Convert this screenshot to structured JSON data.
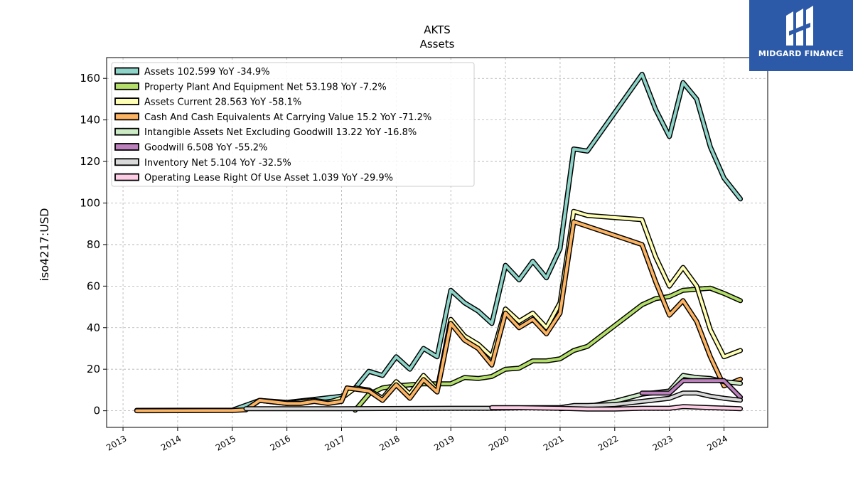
{
  "brand": {
    "name": "MIDGARD FINANCE",
    "bg_color": "#2c5aa8"
  },
  "chart_data": {
    "type": "line",
    "title": "AKTS",
    "subtitle": "Assets",
    "ylabel": "iso4217:USD",
    "xlabel": "",
    "xlim": [
      2012.7,
      2024.8
    ],
    "ylim": [
      -8,
      170
    ],
    "yticks": [
      0,
      20,
      40,
      60,
      80,
      100,
      120,
      140,
      160
    ],
    "xticks": [
      "2013",
      "2014",
      "2015",
      "2016",
      "2017",
      "2018",
      "2019",
      "2020",
      "2021",
      "2022",
      "2023",
      "2024"
    ],
    "grid": true,
    "legend_position": "top-left",
    "series": [
      {
        "name": "Assets",
        "legend": "Assets  102.599 YoY -34.9%",
        "color": "#8dd3c7",
        "points": [
          [
            2013.25,
            0.2
          ],
          [
            2015.0,
            0.3
          ],
          [
            2015.5,
            5.0
          ],
          [
            2016.0,
            4.0
          ],
          [
            2016.5,
            5.5
          ],
          [
            2017.0,
            7.0
          ],
          [
            2017.25,
            11.0
          ],
          [
            2017.5,
            19.0
          ],
          [
            2017.75,
            17.0
          ],
          [
            2018.0,
            26.0
          ],
          [
            2018.25,
            20.0
          ],
          [
            2018.5,
            30.0
          ],
          [
            2018.75,
            26.0
          ],
          [
            2019.0,
            58.0
          ],
          [
            2019.25,
            52.0
          ],
          [
            2019.5,
            48.0
          ],
          [
            2019.75,
            42.0
          ],
          [
            2020.0,
            70.0
          ],
          [
            2020.25,
            63.0
          ],
          [
            2020.5,
            72.0
          ],
          [
            2020.75,
            64.0
          ],
          [
            2021.0,
            78.0
          ],
          [
            2021.25,
            126.0
          ],
          [
            2021.5,
            125.0
          ],
          [
            2022.5,
            162.0
          ],
          [
            2022.75,
            145.0
          ],
          [
            2023.0,
            132.0
          ],
          [
            2023.25,
            158.0
          ],
          [
            2023.5,
            150.0
          ],
          [
            2023.75,
            127.0
          ],
          [
            2024.0,
            112.0
          ],
          [
            2024.3,
            102.0
          ]
        ]
      },
      {
        "name": "Property Plant And Equipment Net",
        "legend": "Property Plant And Equipment Net  53.198 YoY -7.2%",
        "color": "#b3de69",
        "points": [
          [
            2017.25,
            0.3
          ],
          [
            2017.5,
            8.0
          ],
          [
            2017.75,
            11.0
          ],
          [
            2018.0,
            12.0
          ],
          [
            2018.5,
            13.0
          ],
          [
            2019.0,
            13.0
          ],
          [
            2019.25,
            16.0
          ],
          [
            2019.5,
            15.5
          ],
          [
            2019.75,
            16.5
          ],
          [
            2020.0,
            20.0
          ],
          [
            2020.25,
            20.5
          ],
          [
            2020.5,
            24.0
          ],
          [
            2020.75,
            24.0
          ],
          [
            2021.0,
            25.0
          ],
          [
            2021.25,
            29.0
          ],
          [
            2021.5,
            31.0
          ],
          [
            2022.0,
            41.0
          ],
          [
            2022.5,
            51.0
          ],
          [
            2022.75,
            54.0
          ],
          [
            2023.0,
            55.0
          ],
          [
            2023.25,
            58.0
          ],
          [
            2023.5,
            58.5
          ],
          [
            2023.75,
            59.0
          ],
          [
            2024.0,
            56.5
          ],
          [
            2024.3,
            53.0
          ]
        ]
      },
      {
        "name": "Assets Current",
        "legend": "Assets Current  28.563 YoY -58.1%",
        "color": "#ffffb3",
        "points": [
          [
            2015.25,
            0.5
          ],
          [
            2015.5,
            5.0
          ],
          [
            2016.0,
            3.5
          ],
          [
            2016.5,
            5.0
          ],
          [
            2016.75,
            4.0
          ],
          [
            2017.0,
            6.0
          ],
          [
            2017.25,
            11.0
          ],
          [
            2017.5,
            10.0
          ],
          [
            2017.75,
            6.0
          ],
          [
            2018.0,
            14.0
          ],
          [
            2018.25,
            8.0
          ],
          [
            2018.5,
            17.0
          ],
          [
            2018.75,
            10.0
          ],
          [
            2019.0,
            44.0
          ],
          [
            2019.25,
            36.0
          ],
          [
            2019.5,
            32.0
          ],
          [
            2019.75,
            26.0
          ],
          [
            2020.0,
            49.0
          ],
          [
            2020.25,
            43.0
          ],
          [
            2020.5,
            47.0
          ],
          [
            2020.75,
            40.0
          ],
          [
            2021.0,
            52.0
          ],
          [
            2021.25,
            96.0
          ],
          [
            2021.5,
            94.0
          ],
          [
            2022.5,
            92.0
          ],
          [
            2022.75,
            74.0
          ],
          [
            2023.0,
            60.0
          ],
          [
            2023.25,
            69.0
          ],
          [
            2023.5,
            60.0
          ],
          [
            2023.75,
            39.0
          ],
          [
            2024.0,
            26.0
          ],
          [
            2024.3,
            29.0
          ]
        ]
      },
      {
        "name": "Cash And Cash Equivalents At Carrying Value",
        "legend": "Cash And Cash Equivalents At Carrying Value  15.2 YoY -71.2%",
        "color": "#fdb462",
        "points": [
          [
            2013.25,
            0.0
          ],
          [
            2015.0,
            0.1
          ],
          [
            2015.25,
            0.5
          ],
          [
            2015.5,
            5.0
          ],
          [
            2016.0,
            3.5
          ],
          [
            2016.25,
            3.5
          ],
          [
            2016.5,
            4.5
          ],
          [
            2016.75,
            3.5
          ],
          [
            2017.0,
            4.5
          ],
          [
            2017.1,
            11.0
          ],
          [
            2017.5,
            9.5
          ],
          [
            2017.75,
            5.0
          ],
          [
            2018.0,
            12.5
          ],
          [
            2018.25,
            6.0
          ],
          [
            2018.5,
            15.0
          ],
          [
            2018.75,
            9.0
          ],
          [
            2019.0,
            42.0
          ],
          [
            2019.25,
            34.0
          ],
          [
            2019.5,
            30.0
          ],
          [
            2019.75,
            22.0
          ],
          [
            2020.0,
            47.0
          ],
          [
            2020.25,
            40.0
          ],
          [
            2020.5,
            44.0
          ],
          [
            2020.75,
            37.0
          ],
          [
            2021.0,
            47.0
          ],
          [
            2021.25,
            91.0
          ],
          [
            2022.5,
            80.0
          ],
          [
            2022.75,
            62.0
          ],
          [
            2023.0,
            46.0
          ],
          [
            2023.25,
            53.0
          ],
          [
            2023.5,
            43.0
          ],
          [
            2023.75,
            26.0
          ],
          [
            2024.0,
            12.0
          ],
          [
            2024.3,
            15.2
          ]
        ]
      },
      {
        "name": "Intangible Assets Net Excluding Goodwill",
        "legend": "Intangible Assets Net Excluding Goodwill  13.22 YoY -16.8%",
        "color": "#ccebc5",
        "points": [
          [
            2021.0,
            1.0
          ],
          [
            2021.5,
            2.0
          ],
          [
            2022.0,
            4.5
          ],
          [
            2022.5,
            8.0
          ],
          [
            2023.0,
            9.5
          ],
          [
            2023.25,
            17.0
          ],
          [
            2023.5,
            16.0
          ],
          [
            2023.75,
            15.5
          ],
          [
            2024.0,
            14.0
          ],
          [
            2024.3,
            13.2
          ]
        ]
      },
      {
        "name": "Goodwill",
        "legend": "Goodwill  6.508 YoY -55.2%",
        "color": "#bc80bd",
        "points": [
          [
            2022.5,
            8.5
          ],
          [
            2023.0,
            8.5
          ],
          [
            2023.25,
            14.5
          ],
          [
            2024.0,
            14.5
          ],
          [
            2024.3,
            6.5
          ]
        ]
      },
      {
        "name": "Inventory Net",
        "legend": "Inventory Net  5.104 YoY -32.5%",
        "color": "#d9d9d9",
        "points": [
          [
            2015.25,
            1.0
          ],
          [
            2017.0,
            1.0
          ],
          [
            2019.0,
            1.2
          ],
          [
            2019.75,
            1.2
          ],
          [
            2020.5,
            1.5
          ],
          [
            2021.0,
            1.5
          ],
          [
            2021.25,
            2.5
          ],
          [
            2021.5,
            2.5
          ],
          [
            2022.0,
            3.0
          ],
          [
            2022.5,
            4.5
          ],
          [
            2023.0,
            6.0
          ],
          [
            2023.25,
            8.5
          ],
          [
            2023.5,
            8.5
          ],
          [
            2023.75,
            7.0
          ],
          [
            2024.0,
            6.0
          ],
          [
            2024.3,
            5.1
          ]
        ]
      },
      {
        "name": "Operating Lease Right Of Use Asset",
        "legend": "Operating Lease Right Of Use Asset  1.039 YoY -29.9%",
        "color": "#fccde5",
        "points": [
          [
            2019.75,
            1.5
          ],
          [
            2020.25,
            1.5
          ],
          [
            2021.0,
            1.2
          ],
          [
            2021.5,
            0.8
          ],
          [
            2022.0,
            0.8
          ],
          [
            2022.5,
            1.2
          ],
          [
            2023.0,
            1.2
          ],
          [
            2023.25,
            2.0
          ],
          [
            2023.75,
            1.5
          ],
          [
            2024.3,
            1.0
          ]
        ]
      }
    ]
  }
}
